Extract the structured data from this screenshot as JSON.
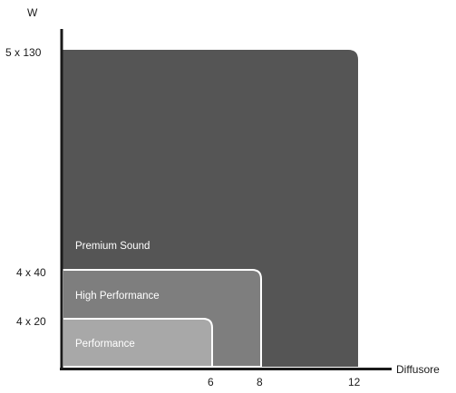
{
  "chart_data": {
    "type": "nested-area",
    "y_axis_label": "W",
    "x_axis_label": "Diffusore",
    "x_ticks": [
      "6",
      "8",
      "12"
    ],
    "y_ticks": [
      "4 x 20",
      "4 x 40",
      "5 x 130"
    ],
    "tiers": [
      {
        "name": "Premium Sound",
        "x_max": 12,
        "y_max": "5 x 130",
        "color": "#555555"
      },
      {
        "name": "High Performance",
        "x_max": 8,
        "y_max": "4 x 40",
        "color": "#7e7e7e"
      },
      {
        "name": "Performance",
        "x_max": 6,
        "y_max": "4 x 20",
        "color": "#a8a8a8"
      }
    ]
  }
}
